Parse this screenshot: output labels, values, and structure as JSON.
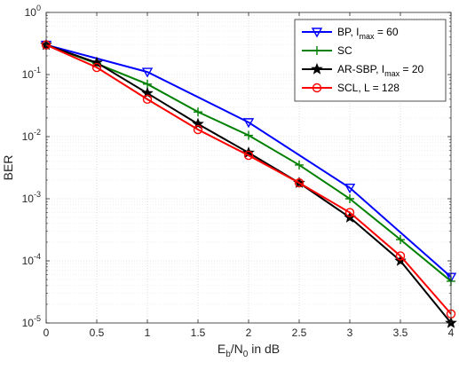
{
  "chart_data": {
    "type": "line",
    "xlabel": "E_b/N_0 in dB",
    "ylabel": "BER",
    "xlim": [
      0,
      4
    ],
    "ylim": [
      1e-05,
      1
    ],
    "yscale": "log",
    "grid": true,
    "minor_grid": true,
    "legend_position": "top-right",
    "x_ticks": [
      "0",
      "0.5",
      "1",
      "1.5",
      "2",
      "2.5",
      "3",
      "3.5",
      "4"
    ],
    "y_ticks": [
      {
        "base": "10",
        "exp": "0"
      },
      {
        "base": "10",
        "exp": "-1"
      },
      {
        "base": "10",
        "exp": "-2"
      },
      {
        "base": "10",
        "exp": "-3"
      },
      {
        "base": "10",
        "exp": "-4"
      },
      {
        "base": "10",
        "exp": "-5"
      }
    ],
    "x": [
      0,
      0.5,
      1,
      1.5,
      2,
      2.5,
      3,
      3.5,
      4
    ],
    "series": [
      {
        "name": "BP, I_max = 60",
        "color": "#0000ff",
        "marker": "triangle-down",
        "x": [
          0,
          1,
          2,
          3,
          4
        ],
        "values": [
          0.3,
          0.11,
          0.017,
          0.0015,
          5.5e-05
        ]
      },
      {
        "name": "SC",
        "color": "#008000",
        "marker": "plus",
        "x": [
          0,
          0.5,
          1,
          1.5,
          2,
          2.5,
          3,
          3.5,
          4
        ],
        "values": [
          0.3,
          0.15,
          0.07,
          0.025,
          0.0105,
          0.0035,
          0.001,
          0.00022,
          4.7e-05
        ]
      },
      {
        "name": "AR-SBP, I_max = 20",
        "color": "#000000",
        "marker": "star",
        "x": [
          0,
          0.5,
          1,
          1.5,
          2,
          2.5,
          3,
          3.5,
          4
        ],
        "values": [
          0.3,
          0.155,
          0.05,
          0.016,
          0.0055,
          0.0018,
          0.0005,
          0.0001,
          1e-05
        ]
      },
      {
        "name": "SCL, L = 128",
        "color": "#ff0000",
        "marker": "circle",
        "x": [
          0,
          0.5,
          1,
          1.5,
          2,
          2.5,
          3,
          3.5,
          4
        ],
        "values": [
          0.3,
          0.13,
          0.04,
          0.013,
          0.005,
          0.0018,
          0.0006,
          0.00012,
          1.4e-05
        ]
      }
    ],
    "legend_labels": [
      {
        "pre": "BP, I",
        "sub": "max",
        "post": " = 60"
      },
      {
        "pre": "SC",
        "sub": "",
        "post": ""
      },
      {
        "pre": "AR-SBP, I",
        "sub": "max",
        "post": " = 20"
      },
      {
        "pre": "SCL, L = 128",
        "sub": "",
        "post": ""
      }
    ],
    "xlabel_parts": {
      "e": "E",
      "b": "b",
      "slash": "/N",
      "zero": "0",
      "rest": " in dB"
    }
  }
}
